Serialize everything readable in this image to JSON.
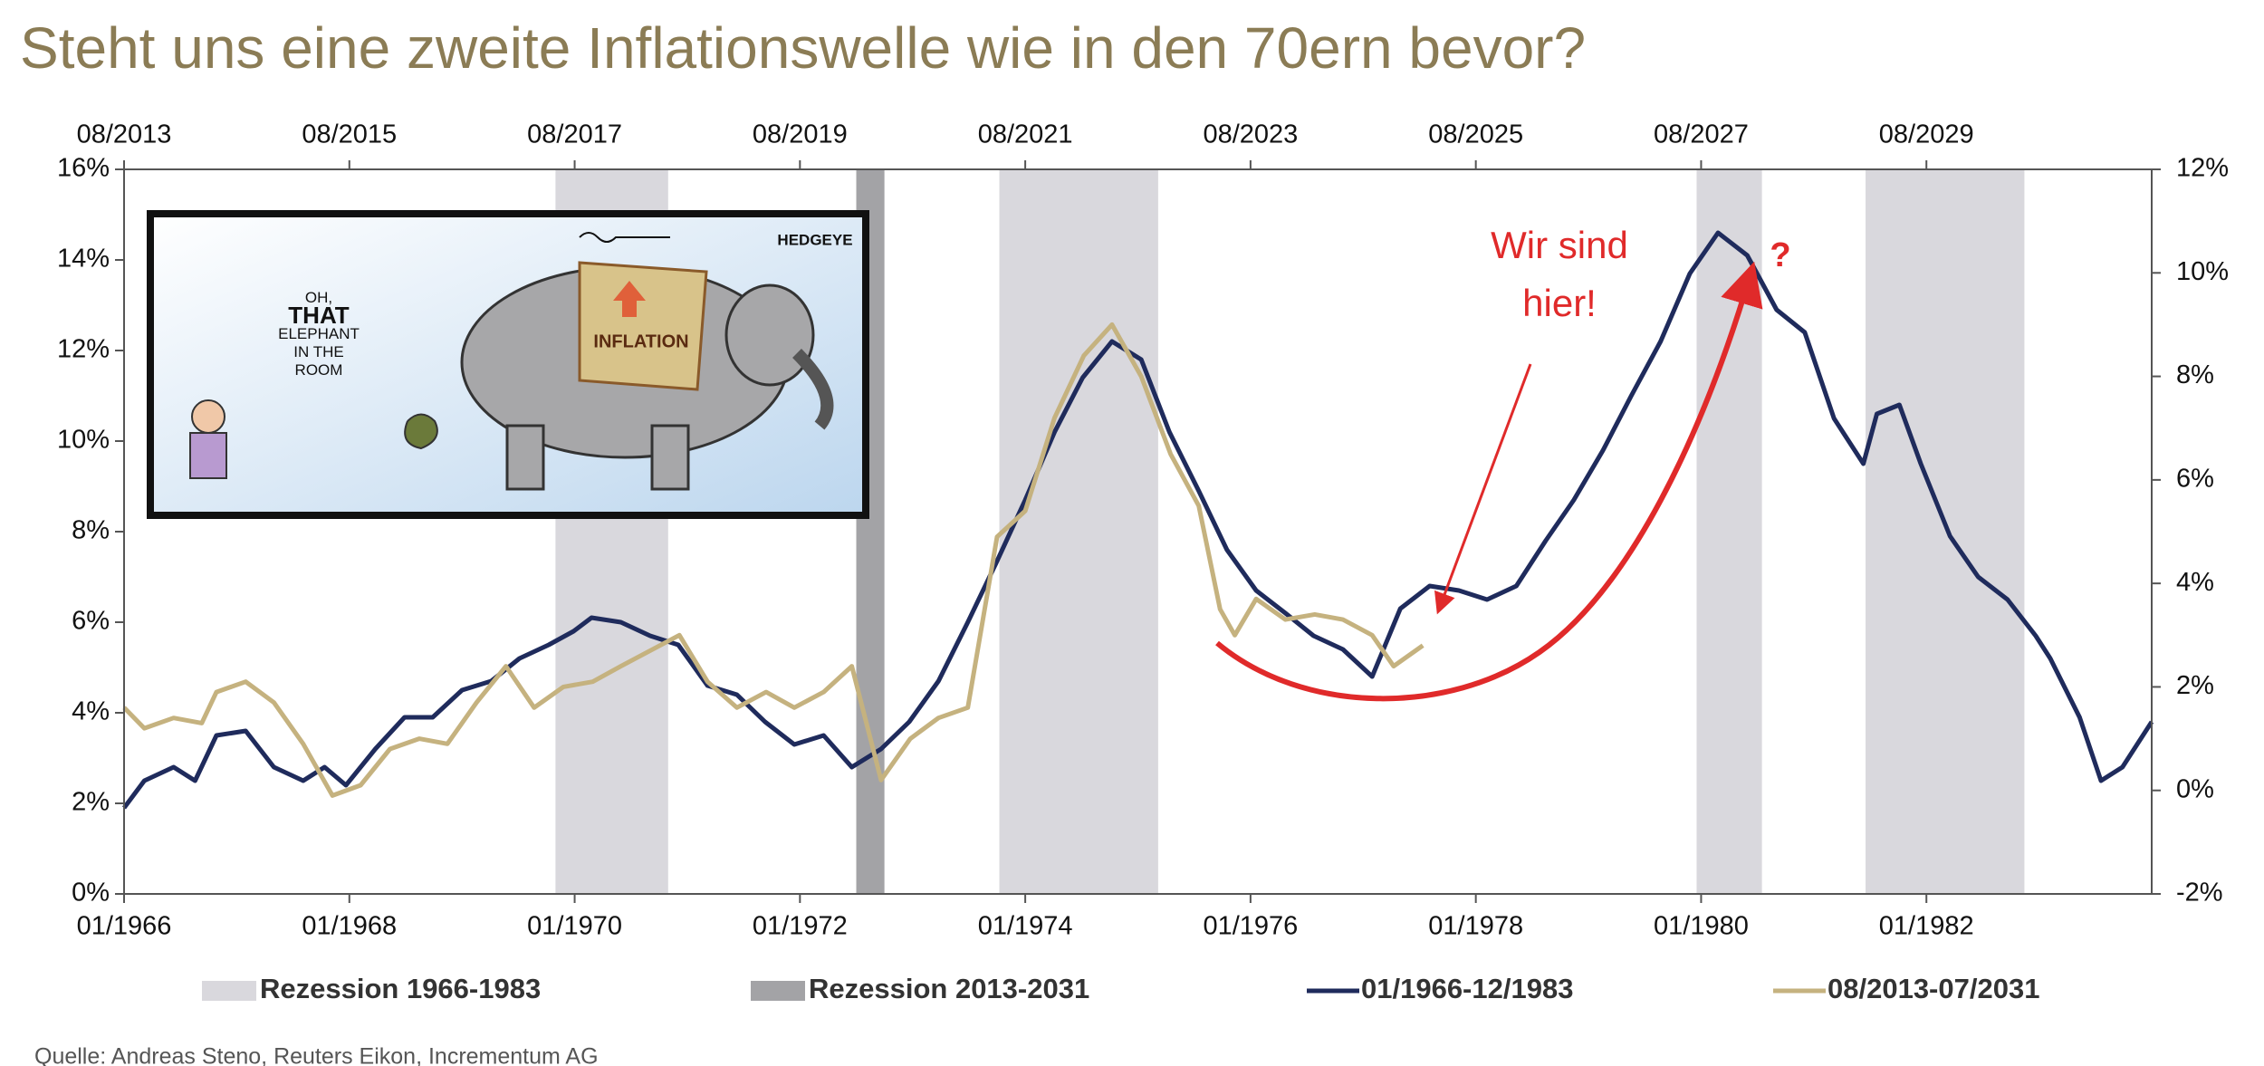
{
  "title": "Steht uns eine zweite Inflationswelle wie in den 70ern bevor?",
  "source": "Quelle: Andreas Steno, Reuters Eikon, Incrementum AG",
  "cartoon": {
    "speech": [
      "OH,",
      "THAT",
      "ELEPHANT",
      "IN THE",
      "ROOM"
    ],
    "blanket": "INFLATION",
    "signature": "HEDGEYE"
  },
  "chart_data": {
    "type": "line",
    "xlim": [
      1966,
      1984
    ],
    "xticks": [
      {
        "value": 1966,
        "label": "01/1966"
      },
      {
        "value": 1968,
        "label": "01/1968"
      },
      {
        "value": 1970,
        "label": "01/1970"
      },
      {
        "value": 1972,
        "label": "01/1972"
      },
      {
        "value": 1974,
        "label": "01/1974"
      },
      {
        "value": 1976,
        "label": "01/1976"
      },
      {
        "value": 1978,
        "label": "01/1978"
      },
      {
        "value": 1980,
        "label": "01/1980"
      },
      {
        "value": 1982,
        "label": "01/1982"
      }
    ],
    "x2lim": [
      2013.58,
      2031.58
    ],
    "x2ticks": [
      {
        "value": 2013.58,
        "label": "08/2013"
      },
      {
        "value": 2015.58,
        "label": "08/2015"
      },
      {
        "value": 2017.58,
        "label": "08/2017"
      },
      {
        "value": 2019.58,
        "label": "08/2019"
      },
      {
        "value": 2021.58,
        "label": "08/2021"
      },
      {
        "value": 2023.58,
        "label": "08/2023"
      },
      {
        "value": 2025.58,
        "label": "08/2025"
      },
      {
        "value": 2027.58,
        "label": "08/2027"
      },
      {
        "value": 2029.58,
        "label": "08/2029"
      }
    ],
    "ylim": [
      0,
      16
    ],
    "yticks": [
      {
        "value": 0,
        "label": "0%"
      },
      {
        "value": 2,
        "label": "2%"
      },
      {
        "value": 4,
        "label": "4%"
      },
      {
        "value": 6,
        "label": "6%"
      },
      {
        "value": 8,
        "label": "8%"
      },
      {
        "value": 10,
        "label": "10%"
      },
      {
        "value": 12,
        "label": "12%"
      },
      {
        "value": 14,
        "label": "14%"
      },
      {
        "value": 16,
        "label": "16%"
      }
    ],
    "y2lim": [
      -2,
      12
    ],
    "y2ticks": [
      {
        "value": -2,
        "label": "-2%"
      },
      {
        "value": 0,
        "label": "0%"
      },
      {
        "value": 2,
        "label": "2%"
      },
      {
        "value": 4,
        "label": "4%"
      },
      {
        "value": 6,
        "label": "6%"
      },
      {
        "value": 8,
        "label": "8%"
      },
      {
        "value": 10,
        "label": "10%"
      },
      {
        "value": 12,
        "label": "12%"
      }
    ],
    "recessions": [
      {
        "name": "Rezession 1966-1983",
        "color": "#d9d8dd",
        "xaxis": "x",
        "spans": [
          [
            1969.83,
            1970.83
          ],
          [
            1973.77,
            1975.18
          ],
          [
            1979.96,
            1980.54
          ],
          [
            1981.46,
            1982.87
          ]
        ]
      },
      {
        "name": "Rezession 2013-2031",
        "color": "#a3a3a6",
        "xaxis": "x2",
        "spans": [
          [
            2020.08,
            2020.33
          ]
        ]
      }
    ],
    "series": [
      {
        "name": "01/1966-12/1983",
        "color": "#1f2b5c",
        "axis": "y",
        "xaxis": "x",
        "x": [
          1966.0,
          1966.18,
          1966.44,
          1966.63,
          1966.82,
          1967.08,
          1967.33,
          1967.59,
          1967.78,
          1967.97,
          1968.23,
          1968.49,
          1968.74,
          1969.0,
          1969.26,
          1969.51,
          1969.77,
          1969.99,
          1970.15,
          1970.41,
          1970.67,
          1970.92,
          1971.18,
          1971.44,
          1971.69,
          1971.95,
          1972.21,
          1972.46,
          1972.72,
          1972.97,
          1973.23,
          1973.49,
          1973.74,
          1974.0,
          1974.26,
          1974.51,
          1974.77,
          1975.03,
          1975.28,
          1975.54,
          1975.79,
          1976.05,
          1976.31,
          1976.56,
          1976.82,
          1977.08,
          1977.33,
          1977.59,
          1977.85,
          1978.1,
          1978.36,
          1978.62,
          1978.87,
          1979.13,
          1979.38,
          1979.64,
          1979.9,
          1980.15,
          1980.41,
          1980.67,
          1980.92,
          1981.18,
          1981.44,
          1981.56,
          1981.76,
          1981.95,
          1982.21,
          1982.46,
          1982.72,
          1982.97,
          1983.1,
          1983.36,
          1983.55,
          1983.74,
          1984.0
        ],
        "values": [
          1.9,
          2.5,
          2.8,
          2.5,
          3.5,
          3.6,
          2.8,
          2.5,
          2.8,
          2.4,
          3.2,
          3.9,
          3.9,
          4.5,
          4.7,
          5.2,
          5.5,
          5.8,
          6.1,
          6.0,
          5.7,
          5.5,
          4.6,
          4.4,
          3.8,
          3.3,
          3.5,
          2.8,
          3.2,
          3.8,
          4.7,
          6.0,
          7.3,
          8.7,
          10.2,
          11.4,
          12.2,
          11.8,
          10.2,
          8.9,
          7.6,
          6.7,
          6.2,
          5.7,
          5.4,
          4.8,
          6.3,
          6.8,
          6.7,
          6.5,
          6.8,
          7.8,
          8.7,
          9.8,
          11.0,
          12.2,
          13.7,
          14.6,
          14.1,
          12.9,
          12.4,
          10.5,
          9.5,
          10.6,
          10.8,
          9.5,
          7.9,
          7.0,
          6.5,
          5.7,
          5.2,
          3.9,
          2.5,
          2.8,
          3.8
        ]
      },
      {
        "name": "08/2013-07/2031",
        "color": "#c5b27f",
        "axis": "y2",
        "xaxis": "x2",
        "x": [
          2013.58,
          2013.76,
          2014.02,
          2014.27,
          2014.4,
          2014.66,
          2014.91,
          2015.17,
          2015.43,
          2015.68,
          2015.94,
          2016.2,
          2016.45,
          2016.71,
          2016.97,
          2017.22,
          2017.48,
          2017.74,
          2017.99,
          2018.25,
          2018.51,
          2018.76,
          2019.02,
          2019.28,
          2019.53,
          2019.79,
          2020.04,
          2020.3,
          2020.56,
          2020.81,
          2021.07,
          2021.33,
          2021.58,
          2021.84,
          2022.1,
          2022.35,
          2022.61,
          2022.87,
          2023.12,
          2023.31,
          2023.44,
          2023.63,
          2023.89,
          2024.15,
          2024.4,
          2024.66,
          2024.85,
          2025.11
        ],
        "values": [
          1.6,
          1.2,
          1.4,
          1.3,
          1.9,
          2.1,
          1.7,
          0.9,
          -0.1,
          0.1,
          0.8,
          1.0,
          0.9,
          1.7,
          2.4,
          1.6,
          2.0,
          2.1,
          2.4,
          2.7,
          3.0,
          2.1,
          1.6,
          1.9,
          1.6,
          1.9,
          2.4,
          0.2,
          1.0,
          1.4,
          1.6,
          4.9,
          5.4,
          7.2,
          8.4,
          9.0,
          8.0,
          6.5,
          5.5,
          3.5,
          3.0,
          3.7,
          3.3,
          3.4,
          3.3,
          3.0,
          2.4,
          2.8
        ]
      }
    ],
    "annotations": {
      "here": [
        "Wir sind",
        "hier!"
      ],
      "question": "?"
    }
  }
}
